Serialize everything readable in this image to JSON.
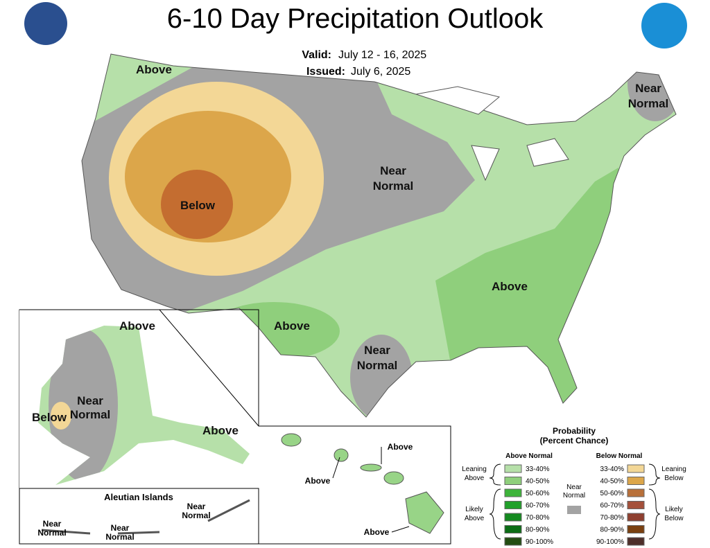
{
  "header": {
    "title": "6-10 Day Precipitation Outlook",
    "valid_label": "Valid:",
    "valid": "July 12 - 16, 2025",
    "issued_label": "Issued:",
    "issued": "July 6, 2025"
  },
  "map_labels": [
    {
      "lines": [
        "Above"
      ]
    },
    {
      "lines": [
        "Below"
      ]
    },
    {
      "lines": [
        "Near",
        "Normal"
      ]
    },
    {
      "lines": [
        "Near",
        "Normal"
      ]
    },
    {
      "lines": [
        "Above"
      ]
    },
    {
      "lines": [
        "Above"
      ]
    },
    {
      "lines": [
        "Near",
        "Normal"
      ]
    }
  ],
  "alaska_labels": [
    {
      "lines": [
        "Above"
      ]
    },
    {
      "lines": [
        "Near",
        "Normal"
      ]
    },
    {
      "lines": [
        "Below"
      ]
    },
    {
      "lines": [
        "Above"
      ]
    }
  ],
  "aleutian": {
    "title": "Aleutian Islands",
    "labels": [
      {
        "lines": [
          "Near",
          "Normal"
        ]
      },
      {
        "lines": [
          "Near",
          "Normal"
        ]
      },
      {
        "lines": [
          "Near",
          "Normal"
        ]
      }
    ]
  },
  "hawaii_labels": [
    {
      "lines": [
        "Above"
      ]
    },
    {
      "lines": [
        "Above"
      ]
    },
    {
      "lines": [
        "Above"
      ]
    }
  ],
  "legend": {
    "title": [
      "Probability",
      "(Percent Chance)"
    ],
    "above_header": "Above Normal",
    "below_header": "Below Normal",
    "near": [
      "Near",
      "Normal"
    ],
    "above_groups": [
      [
        "Leaning",
        "Above"
      ],
      [
        "Likely",
        "Above"
      ]
    ],
    "below_groups": [
      [
        "Leaning",
        "Below"
      ],
      [
        "Likely",
        "Below"
      ]
    ],
    "above_items": [
      "33-40%",
      "40-50%",
      "50-60%",
      "60-70%",
      "70-80%",
      "80-90%",
      "90-100%"
    ],
    "below_items": [
      "33-40%",
      "40-50%",
      "50-60%",
      "60-70%",
      "70-80%",
      "80-90%",
      "90-100%"
    ]
  }
}
